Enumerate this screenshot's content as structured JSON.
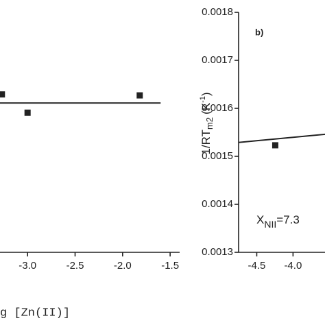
{
  "chart_data": [
    {
      "type": "scatter",
      "x_label": "g [Zn(II)]",
      "xlim": [
        -3.29,
        -1.4
      ],
      "ylim": [
        0.0013,
        0.0018
      ],
      "xticks": [
        {
          "value": -3,
          "label": "-3.0"
        },
        -2.5,
        {
          "value": -2,
          "label": "-2.0"
        },
        -1.5
      ],
      "series": [
        {
          "color": "#222222",
          "x": [
            -3.27,
            -3.0,
            -1.82
          ],
          "values": [
            0.001629,
            0.001591,
            0.001627
          ]
        },
        {
          "color": "#222222",
          "line": true,
          "x": [
            -3.29,
            -1.6
          ],
          "values": [
            0.001611,
            0.001611
          ]
        }
      ]
    },
    {
      "type": "scatter",
      "label": "b)",
      "y_label": {
        "main": "1/RT",
        "sub": "m2",
        "unit": "(K",
        "sup": "-1",
        "close": ")"
      },
      "annotation": {
        "main": "X",
        "sub": "NII",
        "rest": "=7.3"
      },
      "xlim": [
        -4.75,
        -3.55
      ],
      "ylim": [
        0.0013,
        0.0018
      ],
      "xticks": [
        -4.5,
        {
          "value": -4,
          "label": "-4.0"
        }
      ],
      "yticks": [
        0.0013,
        0.0014,
        0.0015,
        0.0016,
        0.0017,
        0.0018
      ],
      "series": [
        {
          "color": "#222222",
          "x": [
            -4.245
          ],
          "values": [
            0.001523
          ]
        },
        {
          "color": "#222222",
          "line": true,
          "x": [
            -4.75,
            -3.55
          ],
          "values": [
            0.001529,
            0.001546
          ]
        }
      ]
    }
  ]
}
